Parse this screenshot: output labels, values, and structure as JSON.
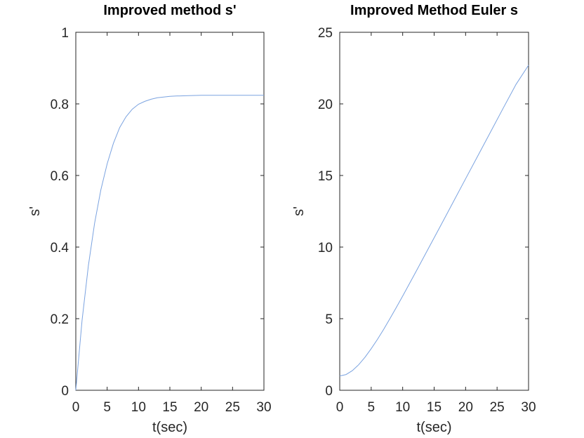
{
  "chart_data": [
    {
      "type": "line",
      "title": "Improved method s'",
      "xlabel": "t(sec)",
      "ylabel": "s'",
      "xlim": [
        0,
        30
      ],
      "ylim": [
        0,
        1
      ],
      "xticks": [
        "0",
        "5",
        "10",
        "15",
        "20",
        "25",
        "30"
      ],
      "yticks": [
        "0",
        "0.2",
        "0.4",
        "0.6",
        "0.8",
        "1"
      ],
      "grid": false,
      "legend": "none",
      "line_color": "#7ba3e0",
      "series": [
        {
          "x": [
            0,
            1,
            2,
            3,
            4,
            5,
            6,
            7,
            8,
            9,
            10,
            11,
            12,
            13,
            14,
            15,
            16,
            18,
            20,
            22,
            25,
            28,
            30
          ],
          "values": [
            0,
            0.195,
            0.348,
            0.467,
            0.56,
            0.633,
            0.69,
            0.734,
            0.764,
            0.785,
            0.799,
            0.807,
            0.813,
            0.817,
            0.819,
            0.821,
            0.822,
            0.823,
            0.824,
            0.824,
            0.824,
            0.824,
            0.824
          ]
        }
      ]
    },
    {
      "type": "line",
      "title": "Improved Method Euler s",
      "xlabel": "t(sec)",
      "ylabel": "s'",
      "xlim": [
        0,
        30
      ],
      "ylim": [
        0,
        25
      ],
      "xticks": [
        "0",
        "5",
        "10",
        "15",
        "20",
        "25",
        "30"
      ],
      "yticks": [
        "0",
        "5",
        "10",
        "15",
        "20",
        "25"
      ],
      "grid": false,
      "legend": "none",
      "line_color": "#7ba3e0",
      "series": [
        {
          "x": [
            0,
            1,
            2,
            3,
            4,
            5,
            6,
            7,
            8,
            9,
            10,
            12,
            14,
            16,
            18,
            20,
            22,
            24,
            26,
            28,
            30
          ],
          "values": [
            1.0,
            1.1,
            1.37,
            1.78,
            2.3,
            2.9,
            3.56,
            4.27,
            5.02,
            5.79,
            6.58,
            8.19,
            9.83,
            11.47,
            13.12,
            14.77,
            16.42,
            18.07,
            19.72,
            21.36,
            22.7
          ]
        }
      ]
    }
  ]
}
